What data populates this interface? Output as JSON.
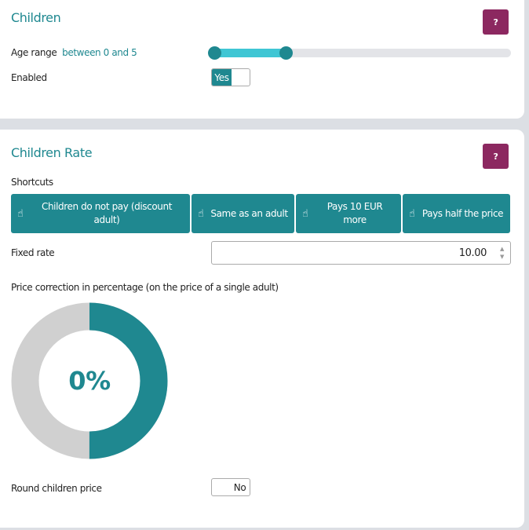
{
  "children": {
    "title": "Children",
    "help": "?",
    "age_label": "Age range",
    "age_value": "between 0 and 5",
    "age_range": [
      0,
      5
    ],
    "age_range_fraction": [
      0,
      0.24
    ],
    "enabled_label": "Enabled",
    "enabled_value": "Yes"
  },
  "rate": {
    "title": "Children Rate",
    "help": "?",
    "shortcuts_label": "Shortcuts",
    "shortcuts": [
      {
        "label": "Children do not pay (discount adult)",
        "icon": "hand-pointer-icon"
      },
      {
        "label": "Same as an adult",
        "icon": "hand-pointer-icon"
      },
      {
        "label": "Pays 10 EUR more",
        "icon": "hand-pointer-icon"
      },
      {
        "label": "Pays half the price",
        "icon": "hand-pointer-icon"
      }
    ],
    "fixed_label": "Fixed rate",
    "fixed_value": "10.00",
    "correction_label": "Price correction in percentage (on the price of a single adult)",
    "correction_value": "0%",
    "donut_fill_fraction": 0.5,
    "round_label": "Round children price",
    "round_value": "No"
  },
  "colors": {
    "accent": "#1f8890",
    "help": "#8c2860",
    "slider": "#3fc6d4"
  }
}
